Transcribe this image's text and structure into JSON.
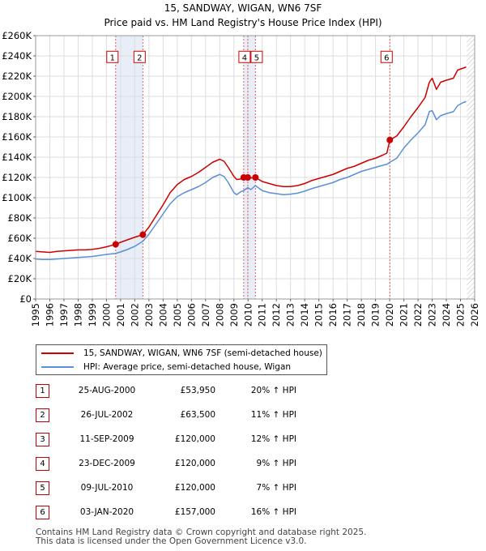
{
  "chart_data": {
    "type": "line",
    "title": "15, SANDWAY, WIGAN, WN6 7SF",
    "subtitle": "Price paid vs. HM Land Registry's House Price Index (HPI)",
    "xlim": [
      1995,
      2026
    ],
    "ylim": [
      0,
      260000
    ],
    "x_ticks": [
      "1995",
      "1996",
      "1997",
      "1998",
      "1999",
      "2000",
      "2001",
      "2002",
      "2003",
      "2004",
      "2005",
      "2006",
      "2007",
      "2008",
      "2009",
      "2010",
      "2011",
      "2012",
      "2013",
      "2014",
      "2015",
      "2016",
      "2017",
      "2018",
      "2019",
      "2020",
      "2021",
      "2022",
      "2023",
      "2024",
      "2025",
      "2026"
    ],
    "y_ticks": [
      "£0",
      "£20K",
      "£40K",
      "£60K",
      "£80K",
      "£100K",
      "£120K",
      "£140K",
      "£160K",
      "£180K",
      "£200K",
      "£220K",
      "£240K",
      "£260K"
    ],
    "series": [
      {
        "name": "15, SANDWAY, WIGAN, WN6 7SF (semi-detached house)",
        "color": "#cc0000",
        "points": [
          [
            1995.0,
            47000
          ],
          [
            1995.5,
            46500
          ],
          [
            1996.0,
            46000
          ],
          [
            1996.5,
            47000
          ],
          [
            1997.0,
            47500
          ],
          [
            1997.5,
            48000
          ],
          [
            1998.0,
            48500
          ],
          [
            1998.5,
            48500
          ],
          [
            1999.0,
            49000
          ],
          [
            1999.5,
            50000
          ],
          [
            2000.0,
            51500
          ],
          [
            2000.65,
            53950
          ],
          [
            2001.0,
            56000
          ],
          [
            2001.5,
            58500
          ],
          [
            2002.0,
            61000
          ],
          [
            2002.57,
            63500
          ],
          [
            2003.0,
            71000
          ],
          [
            2003.5,
            82000
          ],
          [
            2004.0,
            93000
          ],
          [
            2004.5,
            105000
          ],
          [
            2005.0,
            113000
          ],
          [
            2005.5,
            118000
          ],
          [
            2006.0,
            121000
          ],
          [
            2006.5,
            125000
          ],
          [
            2007.0,
            130000
          ],
          [
            2007.5,
            135000
          ],
          [
            2008.0,
            138000
          ],
          [
            2008.3,
            136000
          ],
          [
            2008.6,
            130000
          ],
          [
            2009.0,
            121000
          ],
          [
            2009.2,
            118000
          ],
          [
            2009.5,
            118500
          ],
          [
            2009.69,
            120000
          ],
          [
            2009.98,
            120000
          ],
          [
            2010.2,
            119500
          ],
          [
            2010.52,
            120000
          ],
          [
            2011.0,
            116000
          ],
          [
            2011.5,
            114000
          ],
          [
            2012.0,
            112000
          ],
          [
            2012.5,
            111000
          ],
          [
            2013.0,
            111000
          ],
          [
            2013.5,
            112000
          ],
          [
            2014.0,
            114000
          ],
          [
            2014.5,
            117000
          ],
          [
            2015.0,
            119000
          ],
          [
            2015.5,
            121000
          ],
          [
            2016.0,
            123000
          ],
          [
            2016.5,
            126000
          ],
          [
            2017.0,
            129000
          ],
          [
            2017.5,
            131000
          ],
          [
            2018.0,
            134000
          ],
          [
            2018.5,
            137000
          ],
          [
            2019.0,
            139000
          ],
          [
            2019.5,
            142000
          ],
          [
            2019.8,
            144000
          ],
          [
            2020.01,
            157000
          ],
          [
            2020.5,
            161000
          ],
          [
            2021.0,
            170000
          ],
          [
            2021.5,
            180000
          ],
          [
            2022.0,
            189000
          ],
          [
            2022.5,
            199000
          ],
          [
            2022.8,
            214000
          ],
          [
            2023.0,
            218000
          ],
          [
            2023.3,
            207000
          ],
          [
            2023.6,
            214000
          ],
          [
            2024.0,
            216000
          ],
          [
            2024.5,
            218000
          ],
          [
            2024.8,
            226000
          ],
          [
            2025.2,
            228000
          ],
          [
            2025.4,
            229000
          ]
        ]
      },
      {
        "name": "HPI: Average price, semi-detached house, Wigan",
        "color": "#5b8fd6",
        "points": [
          [
            1995.0,
            39500
          ],
          [
            1995.5,
            39000
          ],
          [
            1996.0,
            39000
          ],
          [
            1996.5,
            39500
          ],
          [
            1997.0,
            40000
          ],
          [
            1997.5,
            40500
          ],
          [
            1998.0,
            41000
          ],
          [
            1998.5,
            41500
          ],
          [
            1999.0,
            42000
          ],
          [
            1999.5,
            43000
          ],
          [
            2000.0,
            44000
          ],
          [
            2000.65,
            45000
          ],
          [
            2001.0,
            46500
          ],
          [
            2001.5,
            49000
          ],
          [
            2002.0,
            52000
          ],
          [
            2002.57,
            57000
          ],
          [
            2003.0,
            64000
          ],
          [
            2003.5,
            74000
          ],
          [
            2004.0,
            84000
          ],
          [
            2004.5,
            94000
          ],
          [
            2005.0,
            101000
          ],
          [
            2005.5,
            105000
          ],
          [
            2006.0,
            108000
          ],
          [
            2006.5,
            111000
          ],
          [
            2007.0,
            115000
          ],
          [
            2007.5,
            120000
          ],
          [
            2008.0,
            123000
          ],
          [
            2008.3,
            121000
          ],
          [
            2008.6,
            115000
          ],
          [
            2009.0,
            105000
          ],
          [
            2009.2,
            103000
          ],
          [
            2009.5,
            106000
          ],
          [
            2009.69,
            107000
          ],
          [
            2009.98,
            110000
          ],
          [
            2010.2,
            108000
          ],
          [
            2010.52,
            112000
          ],
          [
            2011.0,
            107000
          ],
          [
            2011.5,
            105000
          ],
          [
            2012.0,
            104000
          ],
          [
            2012.5,
            103000
          ],
          [
            2013.0,
            103500
          ],
          [
            2013.5,
            104500
          ],
          [
            2014.0,
            106500
          ],
          [
            2014.5,
            109000
          ],
          [
            2015.0,
            111000
          ],
          [
            2015.5,
            113000
          ],
          [
            2016.0,
            115000
          ],
          [
            2016.5,
            118000
          ],
          [
            2017.0,
            120000
          ],
          [
            2017.5,
            123000
          ],
          [
            2018.0,
            126000
          ],
          [
            2018.5,
            128000
          ],
          [
            2019.0,
            130000
          ],
          [
            2019.5,
            132000
          ],
          [
            2019.8,
            133000
          ],
          [
            2020.01,
            135000
          ],
          [
            2020.5,
            139000
          ],
          [
            2021.0,
            149000
          ],
          [
            2021.5,
            157000
          ],
          [
            2022.0,
            164000
          ],
          [
            2022.5,
            172000
          ],
          [
            2022.8,
            185000
          ],
          [
            2023.0,
            186000
          ],
          [
            2023.3,
            177000
          ],
          [
            2023.6,
            181000
          ],
          [
            2024.0,
            183000
          ],
          [
            2024.5,
            185000
          ],
          [
            2024.8,
            191000
          ],
          [
            2025.2,
            194000
          ],
          [
            2025.4,
            195000
          ]
        ]
      }
    ],
    "sales": [
      {
        "num": "1",
        "x": 2000.65,
        "y": 53950
      },
      {
        "num": "2",
        "x": 2002.57,
        "y": 63500
      },
      {
        "num": "3",
        "x": 2009.69,
        "y": 120000
      },
      {
        "num": "4",
        "x": 2009.98,
        "y": 120000
      },
      {
        "num": "5",
        "x": 2010.52,
        "y": 120000
      },
      {
        "num": "6",
        "x": 2020.01,
        "y": 157000
      }
    ],
    "sale_label_order": [
      "1",
      "2",
      "4",
      "5",
      "6"
    ],
    "label_value_level": 239000,
    "shaded_regions": [
      [
        2000.65,
        2002.57
      ],
      [
        2009.69,
        2010.52
      ]
    ],
    "future_hatch_start": 2025.45
  },
  "legend": {
    "property_label": "15, SANDWAY, WIGAN, WN6 7SF (semi-detached house)",
    "hpi_label": "HPI: Average price, semi-detached house, Wigan",
    "property_color": "#cc0000",
    "hpi_color": "#5b8fd6"
  },
  "transactions": [
    {
      "num": "1",
      "date": "25-AUG-2000",
      "price": "£53,950",
      "hpi": "20% ↑ HPI"
    },
    {
      "num": "2",
      "date": "26-JUL-2002",
      "price": "£63,500",
      "hpi": "11% ↑ HPI"
    },
    {
      "num": "3",
      "date": "11-SEP-2009",
      "price": "£120,000",
      "hpi": "12% ↑ HPI"
    },
    {
      "num": "4",
      "date": "23-DEC-2009",
      "price": "£120,000",
      "hpi": "9% ↑ HPI"
    },
    {
      "num": "5",
      "date": "09-JUL-2010",
      "price": "£120,000",
      "hpi": "7% ↑ HPI"
    },
    {
      "num": "6",
      "date": "03-JAN-2020",
      "price": "£157,000",
      "hpi": "16% ↑ HPI"
    }
  ],
  "footer": {
    "line1": "Contains HM Land Registry data © Crown copyright and database right 2025.",
    "line2": "This data is licensed under the Open Government Licence v3.0."
  }
}
